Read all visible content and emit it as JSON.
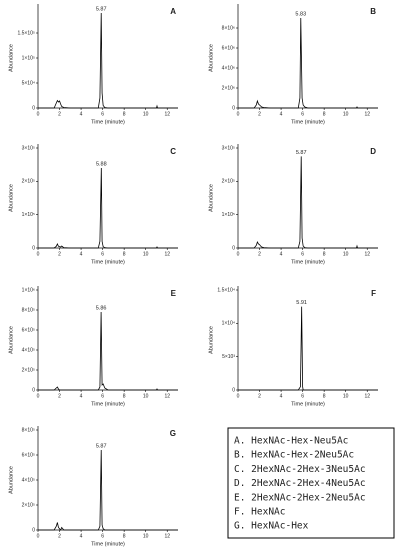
{
  "chart_data": [
    {
      "type": "line",
      "label": "A",
      "x_label": "Time (minute)",
      "y_label": "Abundance",
      "peak_label": 5.87,
      "x": [
        0,
        1.5,
        1.7,
        1.8,
        1.9,
        2.0,
        2.1,
        2.2,
        2.4,
        3,
        5.6,
        5.75,
        5.87,
        5.95,
        6.05,
        6.2,
        6.5,
        11,
        11.05,
        11.1,
        13
      ],
      "series": [
        {
          "color": "#000000",
          "values": [
            0,
            0,
            10000,
            15000,
            12000,
            14000,
            8000,
            3000,
            1000,
            0,
            0,
            20000,
            190000,
            30000,
            5000,
            1000,
            0,
            0,
            4000,
            0,
            0
          ]
        }
      ],
      "xlim": [
        0,
        13
      ],
      "xticks": [
        0,
        2,
        4,
        6,
        8,
        10,
        12
      ],
      "ylim": [
        0,
        200000
      ],
      "yticks": [
        0,
        {
          "value": 50000,
          "label": "5×10⁴"
        },
        {
          "value": 100000,
          "label": "1×10⁵"
        },
        {
          "value": 150000,
          "label": "1.5×10⁵"
        }
      ]
    },
    {
      "type": "line",
      "label": "B",
      "x_label": "Time (minute)",
      "y_label": "Abundance",
      "peak_label": 5.83,
      "x": [
        0,
        1.5,
        1.7,
        1.8,
        1.9,
        2.0,
        2.1,
        2.2,
        2.4,
        3,
        5.6,
        5.75,
        5.83,
        5.95,
        6.05,
        6.2,
        6.5,
        11,
        11.05,
        11.1,
        13
      ],
      "series": [
        {
          "color": "#000000",
          "values": [
            0,
            0,
            300000,
            700000,
            400000,
            300000,
            200000,
            100000,
            50000,
            0,
            0,
            1000000,
            9000000,
            1000000,
            300000,
            100000,
            0,
            0,
            100000,
            0,
            0
          ]
        }
      ],
      "xlim": [
        0,
        13
      ],
      "xticks": [
        0,
        2,
        4,
        6,
        8,
        10,
        12
      ],
      "ylim": [
        0,
        10000000
      ],
      "yticks": [
        0,
        {
          "value": 2000000,
          "label": "2×10⁶"
        },
        {
          "value": 4000000,
          "label": "4×10⁶"
        },
        {
          "value": 6000000,
          "label": "6×10⁶"
        },
        {
          "value": 8000000,
          "label": "8×10⁶"
        }
      ]
    },
    {
      "type": "line",
      "label": "C",
      "x_label": "Time (minute)",
      "y_label": "Abundance",
      "peak_label": 5.88,
      "x": [
        0,
        1.5,
        1.7,
        1.8,
        1.9,
        2.0,
        2.1,
        2.2,
        2.4,
        3,
        5.6,
        5.75,
        5.88,
        5.95,
        6.05,
        6.2,
        6.5,
        11,
        11.05,
        11.1,
        13
      ],
      "series": [
        {
          "color": "#000000",
          "values": [
            0,
            0,
            5000,
            12000,
            5000,
            4000,
            3000,
            6000,
            1000,
            0,
            0,
            20000,
            240000,
            20000,
            4000,
            1000,
            0,
            0,
            3000,
            0,
            0
          ]
        }
      ],
      "xlim": [
        0,
        13
      ],
      "xticks": [
        0,
        2,
        4,
        6,
        8,
        10,
        12
      ],
      "ylim": [
        0,
        300000
      ],
      "yticks": [
        0,
        {
          "value": 100000,
          "label": "1×10⁵"
        },
        {
          "value": 200000,
          "label": "2×10⁵"
        },
        {
          "value": 300000,
          "label": "3×10⁵"
        }
      ]
    },
    {
      "type": "line",
      "label": "D",
      "x_label": "Time (minute)",
      "y_label": "Abundance",
      "peak_label": 5.87,
      "x": [
        0,
        1.5,
        1.7,
        1.8,
        1.9,
        2.0,
        2.1,
        2.2,
        2.4,
        3,
        5.6,
        5.75,
        5.87,
        5.95,
        6.05,
        6.2,
        6.5,
        11,
        11.05,
        11.1,
        13
      ],
      "series": [
        {
          "color": "#000000",
          "values": [
            0,
            0,
            8000,
            18000,
            12000,
            10000,
            6000,
            3000,
            1000,
            0,
            0,
            20000,
            275000,
            30000,
            6000,
            1000,
            0,
            0,
            6000,
            0,
            0
          ]
        }
      ],
      "xlim": [
        0,
        13
      ],
      "xticks": [
        0,
        2,
        4,
        6,
        8,
        10,
        12
      ],
      "ylim": [
        0,
        300000
      ],
      "yticks": [
        0,
        {
          "value": 100000,
          "label": "1×10⁵"
        },
        {
          "value": 200000,
          "label": "2×10⁵"
        },
        {
          "value": 300000,
          "label": "3×10⁵"
        }
      ]
    },
    {
      "type": "line",
      "label": "E",
      "x_label": "Time (minute)",
      "y_label": "Abundance",
      "peak_label": 5.86,
      "x": [
        0,
        1.5,
        1.7,
        1.8,
        1.9,
        2.0,
        2.1,
        2.2,
        2.4,
        3,
        5.6,
        5.75,
        5.86,
        5.95,
        6.05,
        6.2,
        6.5,
        11,
        11.05,
        11.1,
        13
      ],
      "series": [
        {
          "color": "#000000",
          "values": [
            0,
            0,
            20000,
            30000,
            10000,
            0,
            0,
            0,
            0,
            0,
            0,
            30000,
            780000,
            50000,
            60000,
            20000,
            0,
            0,
            10000,
            0,
            0
          ]
        }
      ],
      "xlim": [
        0,
        13
      ],
      "xticks": [
        0,
        2,
        4,
        6,
        8,
        10,
        12
      ],
      "ylim": [
        0,
        1000000
      ],
      "yticks": [
        0,
        {
          "value": 200000,
          "label": "2×10⁵"
        },
        {
          "value": 400000,
          "label": "4×10⁵"
        },
        {
          "value": 600000,
          "label": "6×10⁵"
        },
        {
          "value": 800000,
          "label": "8×10⁵"
        },
        {
          "value": 1000000,
          "label": "1×10⁶"
        }
      ]
    },
    {
      "type": "line",
      "label": "F",
      "x_label": "Time (minute)",
      "y_label": "Abundance",
      "peak_label": 5.91,
      "x": [
        0,
        1.5,
        1.7,
        1.8,
        1.9,
        2.0,
        2.1,
        2.2,
        2.4,
        3,
        5.6,
        5.8,
        5.91,
        6.0,
        6.05,
        6.2,
        6.5,
        11,
        11.05,
        11.1,
        13
      ],
      "series": [
        {
          "color": "#000000",
          "values": [
            0,
            0,
            0,
            0,
            0,
            0,
            0,
            0,
            0,
            0,
            0,
            500,
            12500,
            500,
            0,
            0,
            0,
            0,
            0,
            0,
            0
          ]
        }
      ],
      "xlim": [
        0,
        13
      ],
      "xticks": [
        0,
        2,
        4,
        6,
        8,
        10,
        12
      ],
      "ylim": [
        0,
        15000
      ],
      "yticks": [
        0,
        {
          "value": 5000,
          "label": "5×10³"
        },
        {
          "value": 10000,
          "label": "1×10⁴"
        },
        {
          "value": 15000,
          "label": "1.5×10⁴"
        }
      ]
    },
    {
      "type": "line",
      "label": "G",
      "x_label": "Time (minute)",
      "y_label": "Abundance",
      "peak_label": 5.87,
      "x": [
        0,
        1.5,
        1.7,
        1.8,
        1.9,
        2.0,
        2.1,
        2.2,
        2.4,
        3,
        5.6,
        5.75,
        5.87,
        5.95,
        6.05,
        6.2,
        6.5,
        11,
        11.05,
        11.1,
        13
      ],
      "series": [
        {
          "color": "#000000",
          "values": [
            0,
            0,
            30000,
            60000,
            20000,
            10000,
            0,
            20000,
            0,
            0,
            0,
            30000,
            640000,
            40000,
            10000,
            0,
            0,
            0,
            0,
            0,
            0
          ]
        }
      ],
      "xlim": [
        0,
        13
      ],
      "xticks": [
        0,
        2,
        4,
        6,
        8,
        10,
        12
      ],
      "ylim": [
        0,
        800000
      ],
      "yticks": [
        0,
        {
          "value": 200000,
          "label": "2×10⁵"
        },
        {
          "value": 400000,
          "label": "4×10⁵"
        },
        {
          "value": 600000,
          "label": "6×10⁵"
        },
        {
          "value": 800000,
          "label": "8×10⁵"
        }
      ]
    }
  ],
  "legend": {
    "items": [
      "A. HexNAc-Hex-Neu5Ac",
      "B. HexNAc-Hex-2Neu5Ac",
      "C. 2HexNAc-2Hex-3Neu5Ac",
      "D. 2HexNAc-2Hex-4Neu5Ac",
      "E. 2HexNAc-2Hex-2Neu5Ac",
      "F. HexNAc",
      "G. HexNAc-Hex"
    ]
  }
}
